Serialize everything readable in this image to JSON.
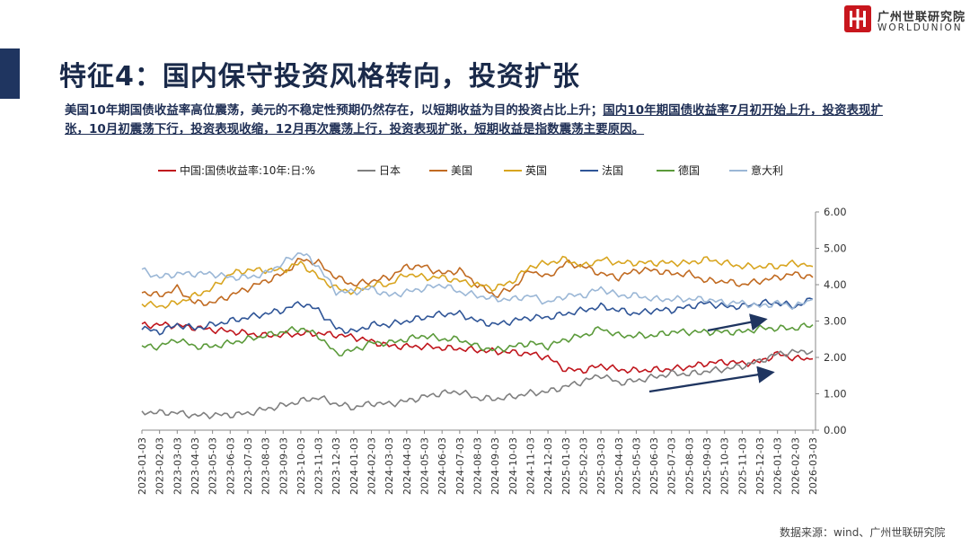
{
  "header": {
    "title": "特征4：国内保守投资风格转向，投资扩张",
    "subtitle_a": "美国10年期国债收益率高位震荡，美元的不稳定性预期仍然存在，以短期收益为目的投资占比上升；",
    "subtitle_b": "国内10年期国债收益率7月初开始上升，投资表现扩张，10月初震荡下行，投资表现收缩，12月再次震荡上行，投资表现扩张，",
    "subtitle_c": "短期收益是指数震荡主要原因。"
  },
  "logo": {
    "cn": "广州世联研究院",
    "en": "WORLDUNION",
    "color": "#c8161d"
  },
  "footer": {
    "source": "数据来源：wind、广州世联研究院"
  },
  "chart_data": {
    "type": "line",
    "title": "",
    "xlabel": "",
    "ylabel": "",
    "ylim": [
      0,
      6
    ],
    "yticks": [
      "0.00",
      "1.00",
      "2.00",
      "3.00",
      "4.00",
      "5.00",
      "6.00"
    ],
    "categories": [
      "2023-01-03",
      "2023-02-03",
      "2023-03-03",
      "2023-04-03",
      "2023-05-03",
      "2023-06-03",
      "2023-07-03",
      "2023-08-03",
      "2023-09-03",
      "2023-10-03",
      "2023-11-03",
      "2023-12-03",
      "2024-01-03",
      "2024-02-03",
      "2024-03-03",
      "2024-04-03",
      "2024-05-03",
      "2024-06-03",
      "2024-07-03",
      "2024-08-03",
      "2024-09-03",
      "2024-10-03",
      "2024-11-03",
      "2024-12-03",
      "2025-01-03",
      "2025-02-03",
      "2025-03-03",
      "2025-04-03",
      "2025-05-03",
      "2025-06-03",
      "2025-07-03",
      "2025-08-03",
      "2025-09-03",
      "2025-10-03",
      "2025-11-03",
      "2025-12-03",
      "2026-01-03",
      "2026-02-03",
      "2026-03-03"
    ],
    "legend_position": "top",
    "series": [
      {
        "name": "中国:国债收益率:10年:日:%",
        "color": "#c0161d",
        "values": [
          2.88,
          2.9,
          2.88,
          2.82,
          2.76,
          2.72,
          2.66,
          2.6,
          2.62,
          2.65,
          2.66,
          2.62,
          2.56,
          2.44,
          2.32,
          2.3,
          2.3,
          2.26,
          2.24,
          2.2,
          2.16,
          2.14,
          2.1,
          2.0,
          1.66,
          1.64,
          1.78,
          1.66,
          1.64,
          1.66,
          1.68,
          1.74,
          1.84,
          1.88,
          1.84,
          1.88,
          2.1,
          1.97,
          1.96
        ]
      },
      {
        "name": "日本",
        "color": "#7f7f7f",
        "values": [
          0.5,
          0.48,
          0.48,
          0.4,
          0.42,
          0.42,
          0.46,
          0.58,
          0.68,
          0.8,
          0.9,
          0.72,
          0.62,
          0.74,
          0.72,
          0.8,
          0.92,
          1.02,
          1.06,
          0.88,
          0.86,
          0.92,
          1.02,
          1.06,
          1.2,
          1.34,
          1.52,
          1.3,
          1.36,
          1.46,
          1.56,
          1.54,
          1.62,
          1.68,
          1.76,
          1.9,
          2.1,
          2.15,
          2.18
        ]
      },
      {
        "name": "美国",
        "color": "#c16b22",
        "values": [
          3.8,
          3.7,
          3.9,
          3.5,
          3.5,
          3.7,
          3.9,
          4.1,
          4.3,
          4.7,
          4.6,
          4.2,
          4.0,
          4.1,
          4.2,
          4.5,
          4.5,
          4.3,
          4.4,
          4.0,
          3.7,
          3.9,
          4.4,
          4.2,
          4.6,
          4.5,
          4.3,
          4.2,
          4.4,
          4.4,
          4.3,
          4.3,
          4.1,
          4.1,
          4.0,
          4.1,
          4.2,
          4.3,
          4.2
        ]
      },
      {
        "name": "英国",
        "color": "#d8a520",
        "values": [
          3.5,
          3.4,
          3.5,
          3.7,
          3.9,
          4.3,
          4.4,
          4.4,
          4.4,
          4.6,
          4.2,
          3.9,
          3.8,
          4.0,
          4.0,
          4.3,
          4.2,
          4.2,
          4.1,
          4.0,
          3.9,
          4.1,
          4.5,
          4.6,
          4.7,
          4.5,
          4.7,
          4.6,
          4.6,
          4.6,
          4.6,
          4.6,
          4.7,
          4.6,
          4.5,
          4.5,
          4.5,
          4.6,
          4.5
        ]
      },
      {
        "name": "法国",
        "color": "#2f5597",
        "values": [
          2.8,
          2.7,
          2.9,
          2.8,
          2.9,
          3.0,
          3.1,
          3.2,
          3.3,
          3.5,
          3.3,
          2.8,
          2.7,
          2.9,
          2.9,
          3.0,
          3.1,
          3.2,
          3.2,
          3.0,
          2.9,
          3.0,
          3.1,
          3.1,
          3.2,
          3.3,
          3.4,
          3.3,
          3.2,
          3.3,
          3.3,
          3.4,
          3.5,
          3.4,
          3.4,
          3.5,
          3.5,
          3.4,
          3.6
        ]
      },
      {
        "name": "德国",
        "color": "#5b9a3a",
        "values": [
          2.3,
          2.3,
          2.5,
          2.3,
          2.3,
          2.4,
          2.5,
          2.6,
          2.7,
          2.8,
          2.6,
          2.1,
          2.2,
          2.4,
          2.4,
          2.5,
          2.6,
          2.5,
          2.5,
          2.3,
          2.2,
          2.3,
          2.4,
          2.3,
          2.5,
          2.6,
          2.8,
          2.6,
          2.6,
          2.6,
          2.7,
          2.7,
          2.7,
          2.7,
          2.7,
          2.8,
          2.8,
          2.8,
          2.9
        ]
      },
      {
        "name": "意大利",
        "color": "#9bb7d6",
        "values": [
          4.4,
          4.2,
          4.3,
          4.3,
          4.3,
          4.2,
          4.2,
          4.3,
          4.6,
          4.9,
          4.5,
          3.8,
          3.8,
          3.9,
          3.7,
          3.8,
          3.9,
          4.0,
          3.8,
          3.7,
          3.6,
          3.6,
          3.7,
          3.5,
          3.7,
          3.7,
          3.9,
          3.7,
          3.7,
          3.6,
          3.6,
          3.6,
          3.6,
          3.5,
          3.5,
          3.4,
          3.5,
          3.4,
          3.6
        ]
      }
    ],
    "annotations": [
      "upper trend arrow over China series (2025-09 to 2025-12)",
      "lower trend arrow over Japan series (2025-06 to 2025-12)"
    ]
  }
}
